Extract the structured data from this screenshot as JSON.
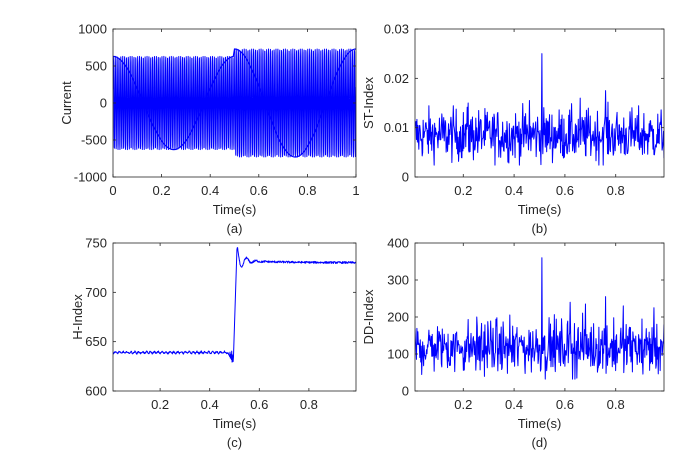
{
  "line_color": "#0000ff",
  "chart_data": [
    {
      "type": "line",
      "panel_label": "(a)",
      "xlabel": "Time(s)",
      "ylabel": "Current",
      "xlim": [
        0,
        1
      ],
      "ylim": [
        -1000,
        1000
      ],
      "xticks": [
        0,
        0.2,
        0.4,
        0.6,
        0.8,
        1
      ],
      "xtick_labels": [
        "0",
        "0.2",
        "0.4",
        "0.6",
        "0.8",
        "1"
      ],
      "yticks": [
        -1000,
        -500,
        0,
        500,
        1000
      ],
      "ytick_labels": [
        "-1000",
        "-500",
        "0",
        "500",
        "1000"
      ],
      "signal": {
        "kind": "amplitude-modulated oscillation",
        "carrier_frequency_hz": 130,
        "amplitude_before": 630,
        "amplitude_after": 730,
        "step_time": 0.5,
        "beat_envelope_periods_s": 0.5
      }
    },
    {
      "type": "line",
      "panel_label": "(b)",
      "xlabel": "Time(s)",
      "ylabel": "ST-Index",
      "xlim": [
        0.01,
        0.99
      ],
      "ylim": [
        0,
        0.03
      ],
      "xticks": [
        0.2,
        0.4,
        0.6,
        0.8
      ],
      "xtick_labels": [
        "0.2",
        "0.4",
        "0.6",
        "0.8"
      ],
      "yticks": [
        0,
        0.01,
        0.02,
        0.03
      ],
      "ytick_labels": [
        "0",
        "0.01",
        "0.02",
        "0.03"
      ],
      "signal": {
        "kind": "noisy index",
        "mean": 0.0085,
        "spread": 0.0028,
        "spikes": [
          {
            "x": 0.51,
            "y": 0.025
          },
          {
            "x": 0.76,
            "y": 0.0175
          },
          {
            "x": 0.66,
            "y": 0.016
          },
          {
            "x": 0.22,
            "y": 0.015
          },
          {
            "x": 0.46,
            "y": 0.0155
          }
        ]
      }
    },
    {
      "type": "line",
      "panel_label": "(c)",
      "xlabel": "Time(s)",
      "ylabel": "H-Index",
      "xlim": [
        0.01,
        0.99
      ],
      "ylim": [
        600,
        750
      ],
      "xticks": [
        0.2,
        0.4,
        0.6,
        0.8
      ],
      "xtick_labels": [
        "0.2",
        "0.4",
        "0.6",
        "0.8"
      ],
      "yticks": [
        600,
        650,
        700,
        750
      ],
      "ytick_labels": [
        "600",
        "650",
        "700",
        "750"
      ],
      "signal": {
        "kind": "step response",
        "level_before": 639,
        "level_after": 730,
        "step_time": 0.5,
        "min_before_step": 628,
        "overshoot_peak": 745
      }
    },
    {
      "type": "line",
      "panel_label": "(d)",
      "xlabel": "Time(s)",
      "ylabel": "DD-Index",
      "xlim": [
        0.01,
        0.99
      ],
      "ylim": [
        0,
        400
      ],
      "xticks": [
        0.2,
        0.4,
        0.6,
        0.8
      ],
      "xtick_labels": [
        "0.2",
        "0.4",
        "0.6",
        "0.8"
      ],
      "yticks": [
        0,
        100,
        200,
        300,
        400
      ],
      "ytick_labels": [
        "0",
        "100",
        "200",
        "300",
        "400"
      ],
      "signal": {
        "kind": "noisy index",
        "mean": 118,
        "spread": 38,
        "spikes": [
          {
            "x": 0.51,
            "y": 360
          },
          {
            "x": 0.76,
            "y": 255
          },
          {
            "x": 0.62,
            "y": 240
          },
          {
            "x": 0.68,
            "y": 235
          },
          {
            "x": 0.95,
            "y": 225
          },
          {
            "x": 0.83,
            "y": 230
          }
        ]
      }
    }
  ]
}
